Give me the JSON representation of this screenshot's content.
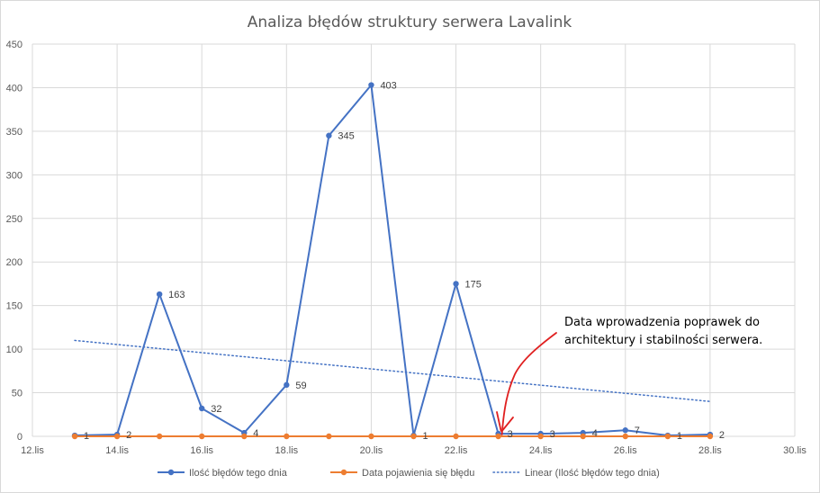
{
  "chart_data": {
    "type": "line",
    "title": "Analiza błędów struktury serwera Lavalink",
    "xlabel": "",
    "ylabel": "",
    "x_axis": {
      "type": "date",
      "ticks": [
        "12.lis",
        "14.lis",
        "16.lis",
        "18.lis",
        "20.lis",
        "22.lis",
        "24.lis",
        "26.lis",
        "28.lis",
        "30.lis"
      ],
      "range": [
        "12.lis",
        "30.lis"
      ]
    },
    "y_axis": {
      "range": [
        0,
        450
      ],
      "ticks": [
        0,
        50,
        100,
        150,
        200,
        250,
        300,
        350,
        400,
        450
      ]
    },
    "grid": true,
    "legend_position": "bottom",
    "x": [
      "13.lis",
      "14.lis",
      "15.lis",
      "16.lis",
      "17.lis",
      "18.lis",
      "19.lis",
      "20.lis",
      "21.lis",
      "22.lis",
      "23.lis",
      "24.lis",
      "25.lis",
      "26.lis",
      "27.lis",
      "28.lis"
    ],
    "series": [
      {
        "name": "Ilość błędów tego dnia",
        "color": "#4472c4",
        "values": [
          1,
          2,
          163,
          32,
          4,
          59,
          345,
          403,
          1,
          175,
          3,
          3,
          4,
          7,
          1,
          2
        ],
        "data_labels": [
          "1",
          "2",
          "163",
          "32",
          "4",
          "59",
          "345",
          "403",
          "1",
          "175",
          "3",
          "3",
          "4",
          "7",
          "1",
          "2"
        ]
      },
      {
        "name": "Data pojawienia się błędu",
        "color": "#ed7d31",
        "values": [
          0,
          0,
          0,
          0,
          0,
          0,
          0,
          0,
          0,
          0,
          0,
          0,
          0,
          0,
          0,
          0
        ]
      }
    ],
    "trendline": {
      "name": "Linear (Ilość błędów tego dnia)",
      "color": "#4472c4",
      "style": "dotted",
      "from": {
        "x": "13.lis",
        "y": 110
      },
      "to": {
        "x": "28.lis",
        "y": 40
      }
    },
    "annotations": [
      {
        "text_lines": [
          "Data wprowadzenia poprawek do",
          "architektury i stabilności serwera."
        ],
        "points_to": {
          "x": "23.lis",
          "y": 0
        },
        "arrow_color": "#e02020"
      }
    ]
  }
}
